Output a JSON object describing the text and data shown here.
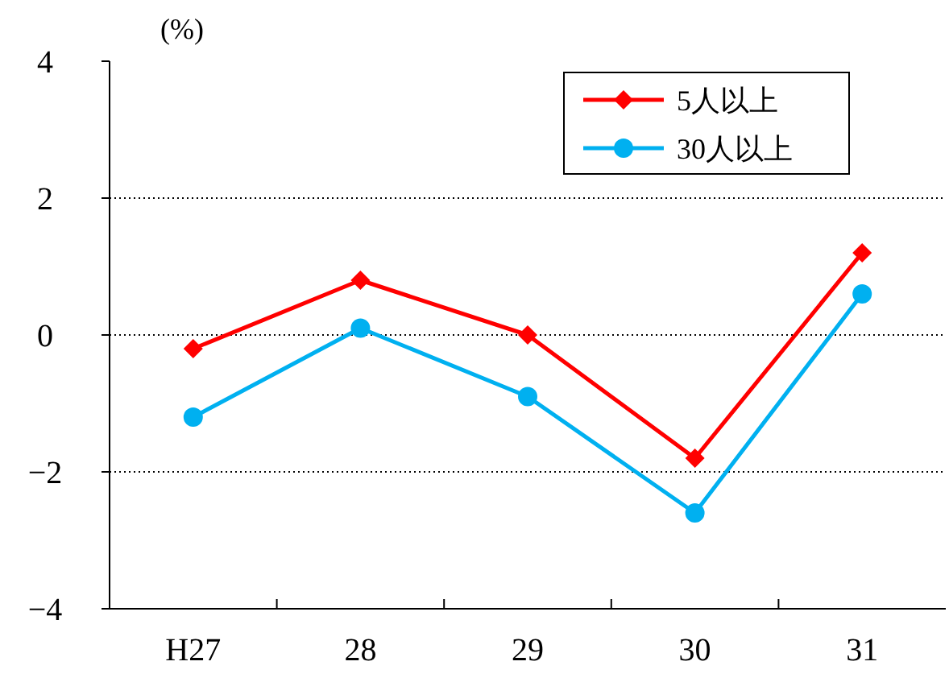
{
  "chart_data": {
    "type": "line",
    "ylabel": "(%)",
    "categories": [
      "H27",
      "28",
      "29",
      "30",
      "31"
    ],
    "series": [
      {
        "name": "5人以上",
        "color": "#ff0000",
        "marker": "diamond",
        "values": [
          -0.2,
          0.8,
          0.0,
          -1.8,
          1.2
        ]
      },
      {
        "name": "30人以上",
        "color": "#00b0f0",
        "marker": "circle",
        "values": [
          -1.2,
          0.1,
          -0.9,
          -2.6,
          0.6
        ]
      }
    ],
    "ylim": [
      -4,
      4
    ],
    "yticks": [
      4,
      2,
      0,
      -2,
      -4
    ],
    "grid": "y",
    "legend": "top right"
  }
}
